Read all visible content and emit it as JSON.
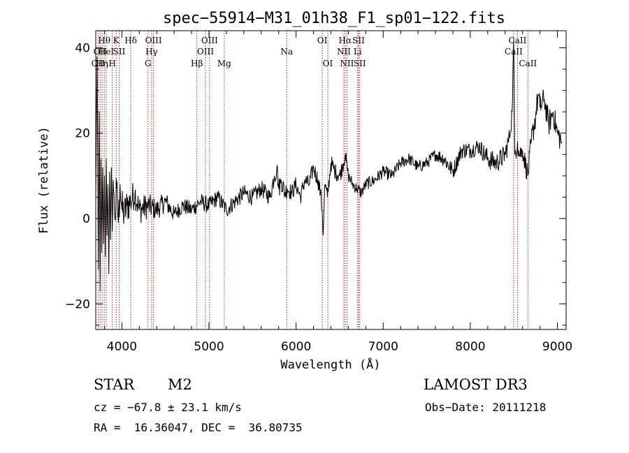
{
  "chart_data": {
    "type": "line",
    "title": "spec−55914−M31_01h38_F1_sp01−122.fits",
    "xlabel": "Wavelength (Å)",
    "ylabel": "Flux (relative)",
    "xlim": [
      3700,
      9100
    ],
    "ylim": [
      -26,
      44
    ],
    "x_ticks": [
      4000,
      5000,
      6000,
      7000,
      8000,
      9000
    ],
    "y_ticks": [
      -20,
      0,
      20,
      40
    ],
    "y_tick_labels": [
      "−20",
      "0",
      "20",
      "40"
    ],
    "grid": false,
    "series": [
      {
        "name": "flux",
        "color": "#000000",
        "x": [
          3700,
          3715,
          3730,
          3740,
          3750,
          3760,
          3770,
          3780,
          3790,
          3800,
          3810,
          3820,
          3830,
          3840,
          3850,
          3860,
          3870,
          3880,
          3890,
          3900,
          3920,
          3940,
          3960,
          3980,
          4000,
          4030,
          4060,
          4100,
          4150,
          4200,
          4300,
          4400,
          4500,
          4600,
          4700,
          4800,
          4900,
          5000,
          5100,
          5200,
          5300,
          5400,
          5500,
          5600,
          5700,
          5750,
          5780,
          5800,
          5830,
          5870,
          5900,
          5950,
          6000,
          6050,
          6100,
          6150,
          6200,
          6250,
          6280,
          6300,
          6310,
          6330,
          6360,
          6400,
          6450,
          6500,
          6530,
          6563,
          6600,
          6650,
          6700,
          6750,
          6800,
          6900,
          7000,
          7100,
          7200,
          7300,
          7400,
          7500,
          7600,
          7700,
          7800,
          7900,
          8000,
          8100,
          8200,
          8300,
          8400,
          8450,
          8480,
          8498,
          8510,
          8542,
          8560,
          8600,
          8662,
          8700,
          8750,
          8780,
          8800,
          8850,
          8900,
          8950,
          9000,
          9050
        ],
        "y": [
          5,
          38,
          -12,
          25,
          -17,
          14,
          -8,
          12,
          -6,
          10,
          -9,
          14,
          -4,
          8,
          -13,
          11,
          -5,
          12,
          -3,
          9,
          0,
          7,
          -1,
          8,
          2,
          1,
          3,
          4,
          6,
          2,
          3,
          2,
          4,
          1,
          3,
          2,
          4,
          3,
          5,
          2,
          4,
          6,
          5,
          7,
          5,
          10,
          12,
          7,
          9,
          6,
          7,
          6,
          8,
          5,
          9,
          8,
          12,
          9,
          6,
          2,
          -4,
          8,
          5,
          13,
          11,
          10,
          12,
          15,
          10,
          8,
          7,
          6,
          8,
          9,
          11,
          10,
          13,
          14,
          12,
          13,
          15,
          14,
          11,
          16,
          16,
          17,
          14,
          13,
          15,
          19,
          25,
          42,
          15,
          18,
          15,
          16,
          10,
          18,
          24,
          29,
          26,
          28,
          22,
          25,
          20,
          18
        ],
        "noise_amplitude": [
          0,
          0,
          0,
          0,
          0,
          0,
          0,
          0,
          0,
          0,
          0,
          0,
          0,
          0,
          0,
          0,
          0,
          0,
          0,
          0,
          5,
          5,
          5,
          5,
          5,
          4.5,
          4.5,
          4,
          3.5,
          3.5,
          3,
          2.5,
          2.5,
          2,
          2,
          2,
          2,
          2,
          2,
          2,
          2,
          2,
          2,
          2,
          2,
          2.5,
          2.5,
          2.5,
          2.5,
          2.5,
          2,
          2,
          2,
          2,
          2,
          2,
          2,
          2,
          2,
          2,
          2,
          2,
          2,
          2,
          2,
          2,
          2,
          2,
          1.5,
          1.5,
          1.5,
          1.5,
          1.5,
          1.5,
          1.5,
          1.5,
          1.5,
          1.5,
          1.5,
          1.5,
          1.5,
          2,
          2,
          2,
          2,
          2,
          2.5,
          2.5,
          2.5,
          2.5,
          2.5,
          2.5,
          2.5,
          2.5,
          2.5,
          2.5,
          2.5,
          3,
          3,
          3,
          3,
          3,
          3,
          3,
          3,
          3
        ]
      }
    ],
    "line_color": "#b22222",
    "spectral_lines": [
      {
        "wave": 3727,
        "label": "OII",
        "row": 3
      },
      {
        "wave": 3750,
        "label": "OII",
        "row": 2
      },
      {
        "wave": 3772,
        "label": "Hη",
        "row": 3
      },
      {
        "wave": 3798,
        "label": "Hθ",
        "row": 1
      },
      {
        "wave": 3820,
        "label": "HeI",
        "row": 2
      },
      {
        "wave": 3889,
        "label": "H",
        "row": 3
      },
      {
        "wave": 3934,
        "label": "K",
        "row": 1
      },
      {
        "wave": 3969,
        "label": "SII",
        "row": 2
      },
      {
        "wave": 4102,
        "label": "Hδ",
        "row": 1
      },
      {
        "wave": 4300,
        "label": "G",
        "row": 3
      },
      {
        "wave": 4341,
        "label": "Hγ",
        "row": 2
      },
      {
        "wave": 4363,
        "label": "OIII",
        "row": 1
      },
      {
        "wave": 4861,
        "label": "Hβ",
        "row": 3
      },
      {
        "wave": 4959,
        "label": "OIII",
        "row": 2
      },
      {
        "wave": 5007,
        "label": "OIII",
        "row": 1
      },
      {
        "wave": 5175,
        "label": "Mg",
        "row": 3
      },
      {
        "wave": 5893,
        "label": "Na",
        "row": 2
      },
      {
        "wave": 6300,
        "label": "OI",
        "row": 1
      },
      {
        "wave": 6364,
        "label": "OI",
        "row": 3
      },
      {
        "wave": 6548,
        "label": "NII",
        "row": 2
      },
      {
        "wave": 6563,
        "label": "Hα",
        "row": 1
      },
      {
        "wave": 6584,
        "label": "NII",
        "row": 3
      },
      {
        "wave": 6707,
        "label": "Li",
        "row": 2
      },
      {
        "wave": 6717,
        "label": "SII",
        "row": 1
      },
      {
        "wave": 6731,
        "label": "SII",
        "row": 3
      },
      {
        "wave": 8498,
        "label": "CaII",
        "row": 2
      },
      {
        "wave": 8542,
        "label": "CaII",
        "row": 1
      },
      {
        "wave": 8662,
        "label": "CaII",
        "row": 3
      }
    ]
  },
  "info": {
    "class": "STAR",
    "subclass": "M2",
    "survey": "LAMOST DR3",
    "cz": "cz = −67.8 ± 23.1 km/s",
    "obs_date": "Obs−Date: 20111218",
    "coords": "RA =  16.36047, DEC =  36.80735"
  }
}
